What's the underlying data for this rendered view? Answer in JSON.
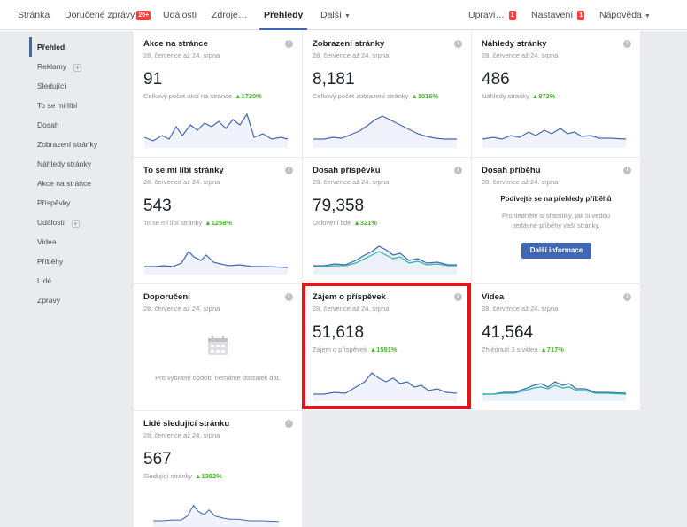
{
  "topnav": {
    "page": "Stránka",
    "inbox": "Doručené zprávy",
    "inbox_badge": "20+",
    "events": "Události",
    "sources": "Zdroje…",
    "insights": "Přehledy",
    "more": "Další",
    "edit": "Upravi…",
    "edit_badge": "1",
    "settings": "Nastavení",
    "settings_badge": "1",
    "help": "Nápověda"
  },
  "sidebar": {
    "items": [
      {
        "label": "Přehled"
      },
      {
        "label": "Reklamy"
      },
      {
        "label": "Sledující"
      },
      {
        "label": "To se mi líbí"
      },
      {
        "label": "Dosah"
      },
      {
        "label": "Zobrazení stránky"
      },
      {
        "label": "Náhledy stránky"
      },
      {
        "label": "Akce na stránce"
      },
      {
        "label": "Příspěvky"
      },
      {
        "label": "Události"
      },
      {
        "label": "Videa"
      },
      {
        "label": "Příběhy"
      },
      {
        "label": "Lidé"
      },
      {
        "label": "Zprávy"
      }
    ]
  },
  "cards": {
    "actions": {
      "title": "Akce na stránce",
      "date": "28. července až 24. srpna",
      "value": "91",
      "sub": "Celkový počet akcí na stránce",
      "change": "▲1720%"
    },
    "views": {
      "title": "Zobrazení stránky",
      "date": "28. července až 24. srpna",
      "value": "8,181",
      "sub": "Celkový počet zobrazení stránky",
      "change": "▲1016%"
    },
    "previews": {
      "title": "Náhledy stránky",
      "date": "28. července až 24. srpna",
      "value": "486",
      "sub": "Náhledy stránky",
      "change": "▲872%"
    },
    "likes": {
      "title": "To se mi líbí stránky",
      "date": "28. července až 24. srpna",
      "value": "543",
      "sub": "To se mi líbí stránky",
      "change": "▲1258%"
    },
    "reach": {
      "title": "Dosah příspěvku",
      "date": "28. července až 24. srpna",
      "value": "79,358",
      "sub": "Oslovení lidé",
      "change": "▲321%"
    },
    "story": {
      "title": "Dosah příběhu",
      "date": "28. července až 24. srpna",
      "heading": "Podívejte se na přehledy příběhů",
      "text": "Prohlédněte si statistiky, jak si vedou nedávné příběhy vaší stránky.",
      "button": "Další informace"
    },
    "recommend": {
      "title": "Doporučení",
      "date": "28. července až 24. srpna",
      "text": "Pro vybrané období nemáme dostatek dat."
    },
    "engagement": {
      "title": "Zájem o příspěvek",
      "date": "28. července až 24. srpna",
      "value": "51,618",
      "sub": "Zájem o příspěvek",
      "change": "▲1591%"
    },
    "videos": {
      "title": "Videa",
      "date": "28. července až 24. srpna",
      "value": "41,564",
      "sub": "Zhlédnutí 3 s videa",
      "change": "▲717%"
    },
    "followers": {
      "title": "Lidé sledující stránku",
      "date": "28. července až 24. srpna",
      "value": "567",
      "sub": "Sledující stránky",
      "change": "▲1392%"
    }
  },
  "colors": {
    "accent": "#4267b2",
    "positive": "#42b72a",
    "line": "#4267b2",
    "line_secondary": "#2ab7a9",
    "highlight": "#e3141e"
  }
}
